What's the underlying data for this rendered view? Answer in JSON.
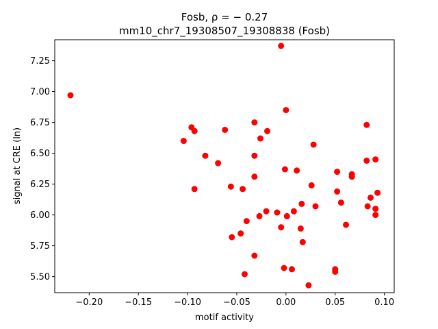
{
  "chart_data": {
    "type": "scatter",
    "title_line1": "Fosb, ρ = − 0.27",
    "title_line2": "mm10_chr7_19308507_19308838 (Fosb)",
    "xlabel": "motif activity",
    "ylabel": "signal at CRE (ln)",
    "xlim": [
      -0.235,
      0.11
    ],
    "ylim": [
      5.37,
      7.42
    ],
    "xticks": [
      -0.2,
      -0.15,
      -0.1,
      -0.05,
      0.0,
      0.05,
      0.1
    ],
    "xtick_labels": [
      "−0.20",
      "−0.15",
      "−0.10",
      "−0.05",
      "0.00",
      "0.05",
      "0.10"
    ],
    "yticks": [
      5.5,
      5.75,
      6.0,
      6.25,
      6.5,
      6.75,
      7.0,
      7.25
    ],
    "ytick_labels": [
      "5.50",
      "5.75",
      "6.00",
      "6.25",
      "6.50",
      "6.75",
      "7.00",
      "7.25"
    ],
    "grid": false,
    "marker_color": "#ff0000",
    "points": [
      {
        "x": -0.219,
        "y": 6.97
      },
      {
        "x": -0.104,
        "y": 6.6
      },
      {
        "x": -0.096,
        "y": 6.71
      },
      {
        "x": -0.093,
        "y": 6.68
      },
      {
        "x": -0.093,
        "y": 6.21
      },
      {
        "x": -0.082,
        "y": 6.48
      },
      {
        "x": -0.069,
        "y": 6.42
      },
      {
        "x": -0.062,
        "y": 6.69
      },
      {
        "x": -0.056,
        "y": 6.23
      },
      {
        "x": -0.055,
        "y": 5.82
      },
      {
        "x": -0.046,
        "y": 5.85
      },
      {
        "x": -0.044,
        "y": 6.21
      },
      {
        "x": -0.042,
        "y": 5.52
      },
      {
        "x": -0.04,
        "y": 5.95
      },
      {
        "x": -0.032,
        "y": 6.75
      },
      {
        "x": -0.032,
        "y": 6.48
      },
      {
        "x": -0.032,
        "y": 6.31
      },
      {
        "x": -0.032,
        "y": 5.67
      },
      {
        "x": -0.026,
        "y": 6.62
      },
      {
        "x": -0.027,
        "y": 5.99
      },
      {
        "x": -0.019,
        "y": 6.68
      },
      {
        "x": -0.02,
        "y": 6.03
      },
      {
        "x": -0.009,
        "y": 6.02
      },
      {
        "x": -0.005,
        "y": 7.37
      },
      {
        "x": -0.005,
        "y": 5.9
      },
      {
        "x": -0.002,
        "y": 5.57
      },
      {
        "x": 0.0,
        "y": 6.85
      },
      {
        "x": -0.001,
        "y": 6.37
      },
      {
        "x": 0.001,
        "y": 5.99
      },
      {
        "x": 0.006,
        "y": 5.56
      },
      {
        "x": 0.008,
        "y": 6.03
      },
      {
        "x": 0.011,
        "y": 6.36
      },
      {
        "x": 0.015,
        "y": 5.89
      },
      {
        "x": 0.016,
        "y": 6.09
      },
      {
        "x": 0.017,
        "y": 5.78
      },
      {
        "x": 0.023,
        "y": 5.43
      },
      {
        "x": 0.026,
        "y": 6.24
      },
      {
        "x": 0.028,
        "y": 6.57
      },
      {
        "x": 0.03,
        "y": 6.07
      },
      {
        "x": 0.05,
        "y": 5.56
      },
      {
        "x": 0.05,
        "y": 5.54
      },
      {
        "x": 0.052,
        "y": 6.35
      },
      {
        "x": 0.052,
        "y": 6.19
      },
      {
        "x": 0.056,
        "y": 6.1
      },
      {
        "x": 0.061,
        "y": 5.92
      },
      {
        "x": 0.067,
        "y": 6.33
      },
      {
        "x": 0.067,
        "y": 6.31
      },
      {
        "x": 0.082,
        "y": 6.73
      },
      {
        "x": 0.082,
        "y": 6.44
      },
      {
        "x": 0.083,
        "y": 6.07
      },
      {
        "x": 0.086,
        "y": 6.14
      },
      {
        "x": 0.091,
        "y": 6.45
      },
      {
        "x": 0.091,
        "y": 6.05
      },
      {
        "x": 0.091,
        "y": 6.0
      },
      {
        "x": 0.093,
        "y": 6.18
      }
    ]
  }
}
